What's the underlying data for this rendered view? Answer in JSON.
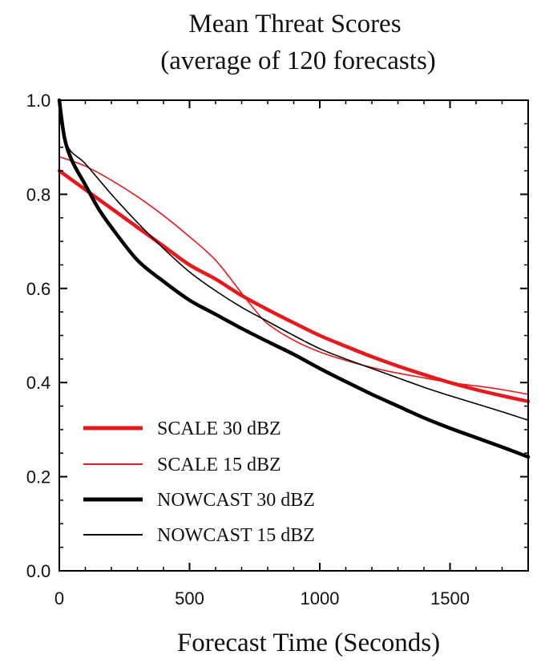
{
  "chart_data": {
    "type": "line",
    "title": "Mean Threat Scores",
    "subtitle": "(average of 120 forecasts)",
    "xlabel": "Forecast Time (Seconds)",
    "ylabel": "",
    "xlim": [
      0,
      1800
    ],
    "ylim": [
      0.0,
      1.0
    ],
    "xticks": [
      "0",
      "500",
      "1000",
      "1500"
    ],
    "xtick_values": [
      0,
      500,
      1000,
      1500
    ],
    "yticks": [
      "0.0",
      "0.2",
      "0.4",
      "0.6",
      "0.8",
      "1.0"
    ],
    "ytick_values": [
      0.0,
      0.2,
      0.4,
      0.6,
      0.8,
      1.0
    ],
    "legend_position": "bottom-left",
    "series": [
      {
        "name": "SCALE 30 dBZ",
        "color": "#e8191d",
        "weight": "thick",
        "x": [
          0,
          100,
          200,
          300,
          400,
          500,
          600,
          700,
          800,
          900,
          1000,
          1100,
          1200,
          1300,
          1400,
          1500,
          1600,
          1700,
          1800
        ],
        "y": [
          0.85,
          0.81,
          0.77,
          0.73,
          0.69,
          0.65,
          0.62,
          0.585,
          0.555,
          0.527,
          0.5,
          0.477,
          0.455,
          0.435,
          0.417,
          0.4,
          0.385,
          0.372,
          0.36
        ]
      },
      {
        "name": "SCALE 15 dBZ",
        "color": "#e8191d",
        "weight": "thin",
        "x": [
          0,
          100,
          200,
          300,
          400,
          500,
          600,
          700,
          750,
          800,
          900,
          1000,
          1100,
          1200,
          1300,
          1400,
          1500,
          1600,
          1700,
          1800
        ],
        "y": [
          0.88,
          0.86,
          0.83,
          0.795,
          0.755,
          0.71,
          0.66,
          0.59,
          0.555,
          0.525,
          0.49,
          0.465,
          0.447,
          0.432,
          0.42,
          0.41,
          0.4,
          0.393,
          0.385,
          0.375
        ]
      },
      {
        "name": "NOWCAST 30 dBZ",
        "color": "#000000",
        "weight": "thick",
        "x": [
          0,
          20,
          50,
          100,
          150,
          200,
          300,
          400,
          500,
          600,
          700,
          800,
          900,
          1000,
          1100,
          1200,
          1300,
          1400,
          1500,
          1600,
          1700,
          1800
        ],
        "y": [
          1.0,
          0.92,
          0.87,
          0.82,
          0.77,
          0.73,
          0.66,
          0.615,
          0.575,
          0.545,
          0.515,
          0.487,
          0.46,
          0.43,
          0.402,
          0.375,
          0.35,
          0.325,
          0.303,
          0.283,
          0.263,
          0.242
        ]
      },
      {
        "name": "NOWCAST 15 dBZ",
        "color": "#000000",
        "weight": "thin",
        "x": [
          0,
          30,
          100,
          200,
          300,
          400,
          500,
          600,
          700,
          800,
          900,
          1000,
          1100,
          1200,
          1300,
          1400,
          1500,
          1600,
          1700,
          1800
        ],
        "y": [
          1.0,
          0.905,
          0.865,
          0.8,
          0.74,
          0.685,
          0.635,
          0.595,
          0.56,
          0.53,
          0.5,
          0.472,
          0.45,
          0.43,
          0.41,
          0.39,
          0.372,
          0.355,
          0.338,
          0.32
        ]
      }
    ]
  }
}
